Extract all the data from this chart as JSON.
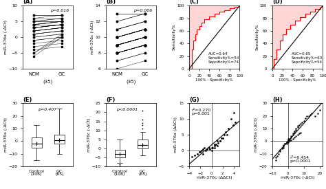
{
  "panel_A": {
    "label": "(A)",
    "ylabel": "miR-376a (-ΔCt)",
    "xlabel_ticks": [
      "NCM",
      "GC"
    ],
    "xlabel_bottom": "(35)",
    "pvalue": "p=0.016",
    "ylim": [
      -10,
      10
    ],
    "yticks": [
      -10,
      -5,
      0,
      5,
      10
    ],
    "ncm_vals": [
      7,
      6,
      5,
      5,
      5,
      4,
      4,
      4,
      4,
      3,
      3,
      3,
      3,
      2,
      2,
      2,
      1,
      1,
      0,
      0,
      -1,
      -1,
      -2,
      -3,
      -4,
      -5,
      -5,
      6,
      7,
      5,
      4,
      3,
      2,
      1,
      -6
    ],
    "gc_vals": [
      7,
      7,
      6,
      5,
      6,
      5,
      5,
      5,
      5,
      4,
      4,
      4,
      4,
      3,
      3,
      3,
      2,
      2,
      1,
      1,
      0,
      0,
      -1,
      -2,
      -3,
      0,
      1,
      6,
      7,
      5,
      4,
      4,
      3,
      2,
      0
    ]
  },
  "panel_B": {
    "label": "(B)",
    "ylabel": "miR-376c (-ΔCt)",
    "xlabel_ticks": [
      "NCM",
      "GC"
    ],
    "xlabel_bottom": "(35)",
    "pvalue": "p=0.006",
    "ylim": [
      6,
      14
    ],
    "yticks": [
      6,
      8,
      10,
      12,
      14
    ],
    "ncm_vals": [
      13,
      12,
      11,
      11,
      10,
      10,
      10,
      10,
      10,
      9,
      9,
      9,
      9,
      9,
      9,
      8,
      8,
      8,
      8,
      8,
      8,
      8,
      7,
      7,
      9,
      10,
      11,
      10,
      9,
      12,
      13,
      10,
      9,
      8,
      6
    ],
    "gc_vals": [
      13,
      13,
      12,
      12,
      11,
      11,
      11,
      11,
      11,
      10,
      10,
      10,
      10,
      10,
      10,
      9,
      9,
      9,
      9,
      9,
      9,
      9,
      8,
      8,
      10,
      11,
      12,
      11,
      10,
      13,
      13,
      11,
      10,
      9,
      7
    ]
  },
  "panel_C": {
    "label": "(C)",
    "ylabel": "Sensitivity%",
    "xlabel": "100% - Specificity%",
    "annotation": "AUC=0.64\nSensitivity%=54\nSepcificity%=74",
    "roc_color": "#FF0000",
    "fill_color": "#FFCCCC"
  },
  "panel_D": {
    "label": "(D)",
    "ylabel": "Sensitivity%",
    "xlabel": "100% - Specificity%",
    "annotation": "AUC=0.65\nSensitivity%=63\nSepcificity%=54",
    "roc_color": "#FF0000",
    "fill_color": "#FFCCCC"
  },
  "panel_E": {
    "label": "(E)",
    "ylabel": "miR-376a (-ΔCt)",
    "xlabel_ticks": [
      "Control\n(108)",
      "GC\n(65)"
    ],
    "pvalue": "p=0.407",
    "ylim": [
      -20,
      30
    ],
    "yticks": [
      -20,
      -10,
      0,
      10,
      20,
      30
    ],
    "ctrl_whislo": -15,
    "ctrl_q1": -5,
    "ctrl_med": -2,
    "ctrl_q3": 3,
    "ctrl_whishi": 13,
    "ctrl_mean": -2,
    "ctrl_fliers": [],
    "gc_whislo": -10,
    "gc_q1": -2,
    "gc_med": 1,
    "gc_q3": 5,
    "gc_whishi": 26,
    "gc_mean": 1,
    "gc_fliers": []
  },
  "panel_F": {
    "label": "(F)",
    "ylabel": "miR-376c (-ΔCt)",
    "xlabel_ticks": [
      "Control\n(108)",
      "GC\n(65)"
    ],
    "pvalue": "p<0.0001",
    "ylim": [
      -10,
      25
    ],
    "yticks": [
      -10,
      -5,
      0,
      5,
      10,
      15,
      20,
      25
    ],
    "ctrl_whislo": -8,
    "ctrl_q1": -5,
    "ctrl_med": -3,
    "ctrl_q3": -1,
    "ctrl_whishi": 5,
    "ctrl_mean": -3,
    "ctrl_fliers": [
      -9,
      -9.5
    ],
    "gc_whislo": -4,
    "gc_q1": 0,
    "gc_med": 2,
    "gc_q3": 5,
    "gc_whishi": 9,
    "gc_mean": 2,
    "gc_fliers": [
      11,
      13,
      14,
      16,
      21
    ]
  },
  "panel_G": {
    "label": "(G)",
    "ylabel": "miR-376a (ΔΔCt)",
    "xlabel": "miR-376c (ΔΔCt)",
    "annotation": "r²=0.270\np=0.001",
    "xlim": [
      -4,
      5
    ],
    "ylim": [
      -5,
      15
    ],
    "xticks": [
      -4,
      -2,
      0,
      2,
      4
    ],
    "yticks": [
      -5,
      0,
      5,
      10,
      15
    ],
    "scatter_x": [
      -3.5,
      -3,
      -2.5,
      -2.2,
      -2,
      -1.8,
      -1.5,
      -1.3,
      -1,
      -0.8,
      -0.5,
      -0.3,
      0,
      0,
      0.2,
      0.5,
      0.5,
      0.8,
      1,
      1,
      1.2,
      1.5,
      1.8,
      2,
      2.2,
      2.5,
      3,
      3.5,
      4,
      4.2,
      3.8,
      2.8,
      1.5,
      0.5,
      -1.5
    ],
    "scatter_y": [
      -2,
      -1.5,
      -1,
      -0.5,
      -0.5,
      0,
      0.5,
      1,
      0,
      0.5,
      1,
      0.5,
      0,
      1,
      1,
      1.5,
      2,
      2,
      1.5,
      3,
      2.5,
      3,
      4,
      4,
      5,
      6,
      7,
      10,
      12,
      9,
      8,
      5,
      3,
      1,
      -1
    ]
  },
  "panel_H": {
    "label": "(H)",
    "ylabel": "miR-376a (-ΔCt)",
    "xlabel": "miR-376c (-ΔCt)",
    "annotation": "r²=0.454\np<0.0001",
    "xlim": [
      -10,
      22
    ],
    "ylim": [
      -20,
      30
    ],
    "xticks": [
      -10,
      0,
      10,
      20
    ],
    "yticks": [
      -20,
      -10,
      0,
      10,
      20,
      30
    ],
    "scatter_x": [
      -8,
      -8,
      -7,
      -6,
      -5,
      -5,
      -4,
      -4,
      -3,
      -3,
      -2,
      -2,
      -1,
      -1,
      0,
      0,
      0,
      1,
      1,
      2,
      2,
      3,
      3,
      4,
      4,
      5,
      5,
      6,
      6,
      7,
      8,
      9,
      10,
      11,
      12,
      13,
      14,
      15,
      17,
      19,
      20,
      -3,
      -1,
      0,
      1,
      2,
      3,
      4,
      5,
      6,
      7,
      8
    ],
    "scatter_y": [
      -15,
      -13,
      -12,
      -10,
      -8,
      -7,
      -6,
      -5,
      -4,
      -3,
      -2,
      -2,
      -1,
      -1,
      0,
      1,
      2,
      1,
      2,
      3,
      4,
      5,
      6,
      7,
      8,
      9,
      10,
      11,
      12,
      13,
      14,
      15,
      16,
      18,
      20,
      20,
      21,
      22,
      20,
      22,
      25,
      -5,
      -2,
      -1,
      0,
      1,
      2,
      3,
      4,
      5,
      6,
      7
    ]
  },
  "bg_color": "#FFFFFF"
}
